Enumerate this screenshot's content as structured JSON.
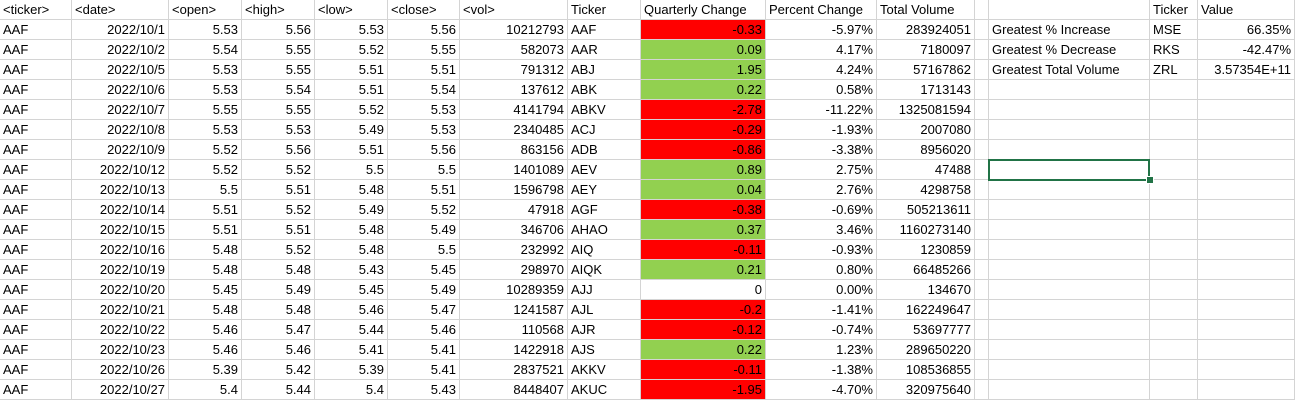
{
  "headers": {
    "A": "<ticker>",
    "B": "<date>",
    "C": "<open>",
    "D": "<high>",
    "E": "<low>",
    "F": "<close>",
    "G": "<vol>",
    "H": "Ticker",
    "I": "Quarterly Change",
    "J": "Percent Change",
    "K": "Total Volume",
    "L": "",
    "M": "",
    "N": "Ticker",
    "O": "Value"
  },
  "raw_rows": [
    [
      "AAF",
      "2022/10/1",
      "5.53",
      "5.56",
      "5.53",
      "5.56",
      "10212793"
    ],
    [
      "AAF",
      "2022/10/2",
      "5.54",
      "5.55",
      "5.52",
      "5.55",
      "582073"
    ],
    [
      "AAF",
      "2022/10/5",
      "5.53",
      "5.55",
      "5.51",
      "5.51",
      "791312"
    ],
    [
      "AAF",
      "2022/10/6",
      "5.53",
      "5.54",
      "5.51",
      "5.54",
      "137612"
    ],
    [
      "AAF",
      "2022/10/7",
      "5.55",
      "5.55",
      "5.52",
      "5.53",
      "4141794"
    ],
    [
      "AAF",
      "2022/10/8",
      "5.53",
      "5.53",
      "5.49",
      "5.53",
      "2340485"
    ],
    [
      "AAF",
      "2022/10/9",
      "5.52",
      "5.56",
      "5.51",
      "5.56",
      "863156"
    ],
    [
      "AAF",
      "2022/10/12",
      "5.52",
      "5.52",
      "5.5",
      "5.5",
      "1401089"
    ],
    [
      "AAF",
      "2022/10/13",
      "5.5",
      "5.51",
      "5.48",
      "5.51",
      "1596798"
    ],
    [
      "AAF",
      "2022/10/14",
      "5.51",
      "5.52",
      "5.49",
      "5.52",
      "47918"
    ],
    [
      "AAF",
      "2022/10/15",
      "5.51",
      "5.51",
      "5.48",
      "5.49",
      "346706"
    ],
    [
      "AAF",
      "2022/10/16",
      "5.48",
      "5.52",
      "5.48",
      "5.5",
      "232992"
    ],
    [
      "AAF",
      "2022/10/19",
      "5.48",
      "5.48",
      "5.43",
      "5.45",
      "298970"
    ],
    [
      "AAF",
      "2022/10/20",
      "5.45",
      "5.49",
      "5.45",
      "5.49",
      "10289359"
    ],
    [
      "AAF",
      "2022/10/21",
      "5.48",
      "5.48",
      "5.46",
      "5.47",
      "1241587"
    ],
    [
      "AAF",
      "2022/10/22",
      "5.46",
      "5.47",
      "5.44",
      "5.46",
      "110568"
    ],
    [
      "AAF",
      "2022/10/23",
      "5.46",
      "5.46",
      "5.41",
      "5.41",
      "1422918"
    ],
    [
      "AAF",
      "2022/10/26",
      "5.39",
      "5.42",
      "5.39",
      "5.41",
      "2837521"
    ],
    [
      "AAF",
      "2022/10/27",
      "5.4",
      "5.44",
      "5.4",
      "5.43",
      "8448407"
    ]
  ],
  "summary_rows": [
    {
      "ticker": "AAF",
      "change": "-0.33",
      "percent": "-5.97%",
      "volume": "283924051",
      "color": "red"
    },
    {
      "ticker": "AAR",
      "change": "0.09",
      "percent": "4.17%",
      "volume": "7180097",
      "color": "green"
    },
    {
      "ticker": "ABJ",
      "change": "1.95",
      "percent": "4.24%",
      "volume": "57167862",
      "color": "green"
    },
    {
      "ticker": "ABK",
      "change": "0.22",
      "percent": "0.58%",
      "volume": "1713143",
      "color": "green"
    },
    {
      "ticker": "ABKV",
      "change": "-2.78",
      "percent": "-11.22%",
      "volume": "1325081594",
      "color": "red"
    },
    {
      "ticker": "ACJ",
      "change": "-0.29",
      "percent": "-1.93%",
      "volume": "2007080",
      "color": "red"
    },
    {
      "ticker": "ADB",
      "change": "-0.86",
      "percent": "-3.38%",
      "volume": "8956020",
      "color": "red"
    },
    {
      "ticker": "AEV",
      "change": "0.89",
      "percent": "2.75%",
      "volume": "47488",
      "color": "green"
    },
    {
      "ticker": "AEY",
      "change": "0.04",
      "percent": "2.76%",
      "volume": "4298758",
      "color": "green"
    },
    {
      "ticker": "AGF",
      "change": "-0.38",
      "percent": "-0.69%",
      "volume": "505213611",
      "color": "red"
    },
    {
      "ticker": "AHAO",
      "change": "0.37",
      "percent": "3.46%",
      "volume": "1160273140",
      "color": "green"
    },
    {
      "ticker": "AIQ",
      "change": "-0.11",
      "percent": "-0.93%",
      "volume": "1230859",
      "color": "red"
    },
    {
      "ticker": "AIQK",
      "change": "0.21",
      "percent": "0.80%",
      "volume": "66485266",
      "color": "green"
    },
    {
      "ticker": "AJJ",
      "change": "0",
      "percent": "0.00%",
      "volume": "134670",
      "color": "none"
    },
    {
      "ticker": "AJL",
      "change": "-0.2",
      "percent": "-1.41%",
      "volume": "162249647",
      "color": "red"
    },
    {
      "ticker": "AJR",
      "change": "-0.12",
      "percent": "-0.74%",
      "volume": "53697777",
      "color": "red"
    },
    {
      "ticker": "AJS",
      "change": "0.22",
      "percent": "1.23%",
      "volume": "289650220",
      "color": "green"
    },
    {
      "ticker": "AKKV",
      "change": "-0.11",
      "percent": "-1.38%",
      "volume": "108536855",
      "color": "red"
    },
    {
      "ticker": "AKUC",
      "change": "-1.95",
      "percent": "-4.70%",
      "volume": "320975640",
      "color": "red"
    }
  ],
  "greatest": [
    {
      "label": "Greatest % Increase",
      "ticker": "MSE",
      "value": "66.35%"
    },
    {
      "label": "Greatest % Decrease",
      "ticker": "RKS",
      "value": "-42.47%"
    },
    {
      "label": "Greatest Total Volume",
      "ticker": "ZRL",
      "value": "3.57354E+11"
    }
  ],
  "colors": {
    "negative_fill": "#ff0000",
    "positive_fill": "#92d050",
    "selection": "#217346",
    "gridline": "#d4d4d4"
  }
}
